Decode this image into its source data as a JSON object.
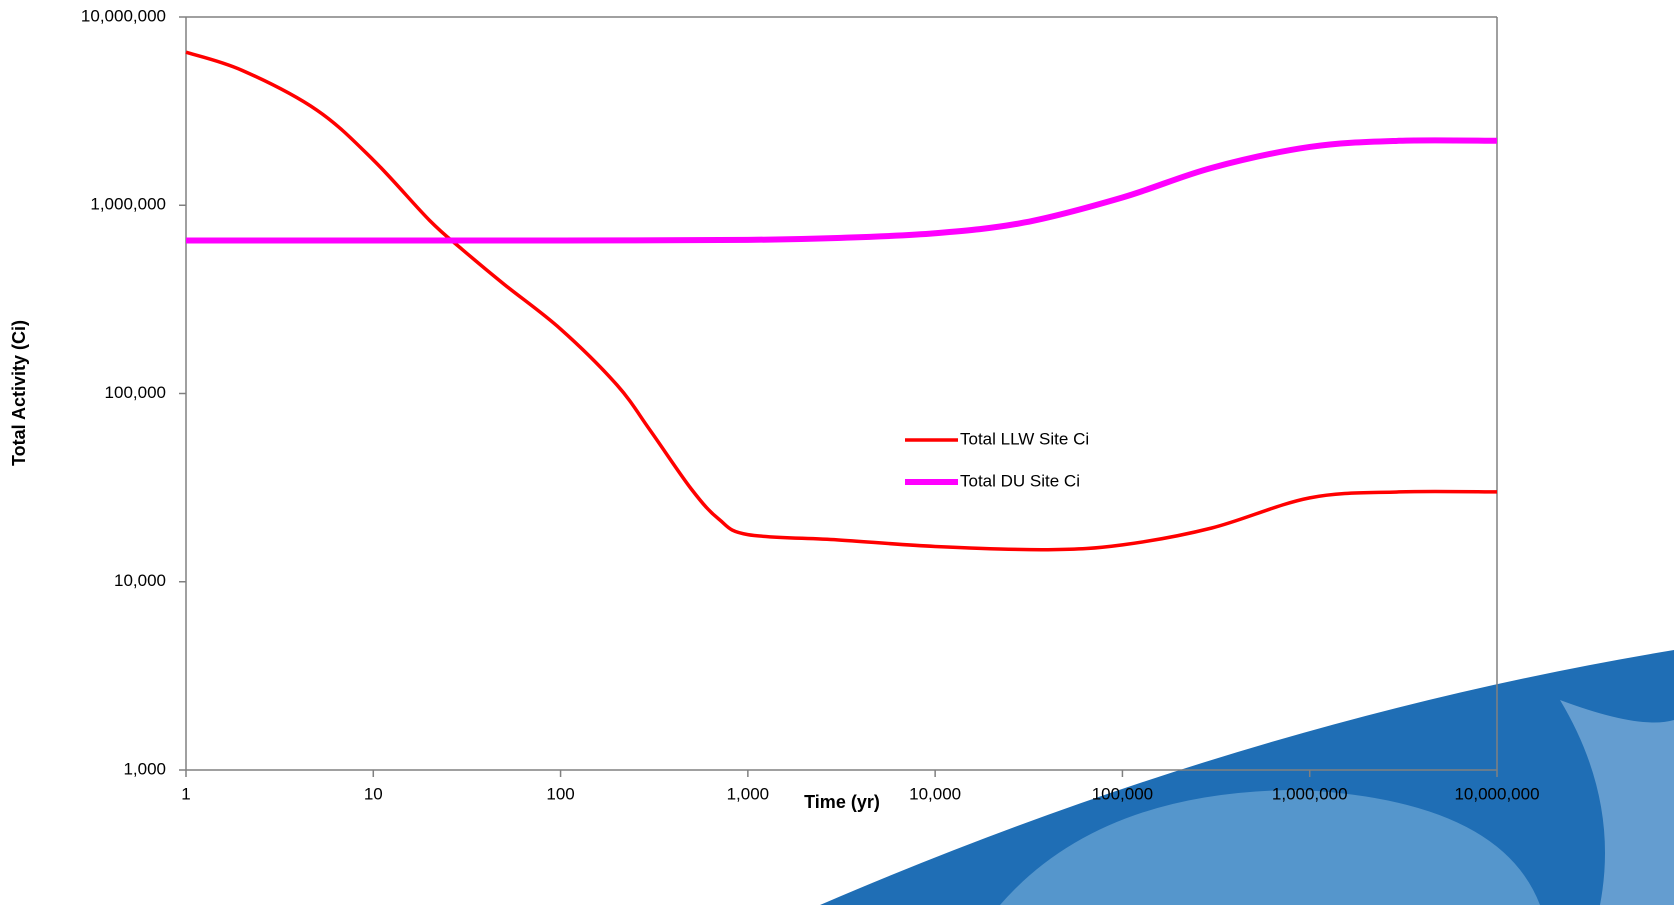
{
  "chart_data": {
    "type": "line",
    "x_label": "Time (yr)",
    "y_label": "Total Activity (Ci)",
    "xscale": "log",
    "yscale": "log",
    "legend": "center-right",
    "xlim": [
      1,
      10000000
    ],
    "ylim": [
      1000,
      10000000
    ],
    "xticks": [
      1,
      10,
      100,
      {
        "value": 1000,
        "label": "1,000"
      },
      {
        "value": 10000,
        "label": "10,000"
      },
      {
        "value": 100000,
        "label": "100,000"
      },
      {
        "value": 1000000,
        "label": "1,000,000"
      },
      {
        "value": 10000000,
        "label": "10,000,000"
      }
    ],
    "yticks": [
      {
        "value": 1000,
        "label": "1,000"
      },
      {
        "value": 10000,
        "label": "10,000"
      },
      {
        "value": 100000,
        "label": "100,000"
      },
      {
        "value": 1000000,
        "label": "1,000,000"
      },
      {
        "value": 10000000,
        "label": "10,000,000"
      }
    ],
    "series": [
      {
        "name": "Total LLW Site Ci",
        "color": "#ff0000",
        "x": [
          1,
          2,
          5,
          10,
          20,
          30,
          50,
          100,
          200,
          300,
          500,
          700,
          1000,
          3000,
          10000,
          40000,
          100000,
          300000,
          1000000,
          3000000,
          10000000
        ],
        "values": [
          6500000,
          5200000,
          3200000,
          1740000,
          830000,
          580000,
          380000,
          220000,
          111000,
          64000,
          31000,
          21500,
          17800,
          16700,
          15400,
          14800,
          15700,
          19300,
          27900,
          30000,
          30000
        ]
      },
      {
        "name": "Total DU Site Ci",
        "color": "#ff00ff",
        "x": [
          1,
          10,
          100,
          1000,
          3000,
          10000,
          30000,
          100000,
          300000,
          1000000,
          3000000,
          10000000
        ],
        "values": [
          650000,
          650000,
          650000,
          655000,
          670000,
          710000,
          810000,
          1100000,
          1580000,
          2040000,
          2200000,
          2200000
        ]
      }
    ]
  }
}
